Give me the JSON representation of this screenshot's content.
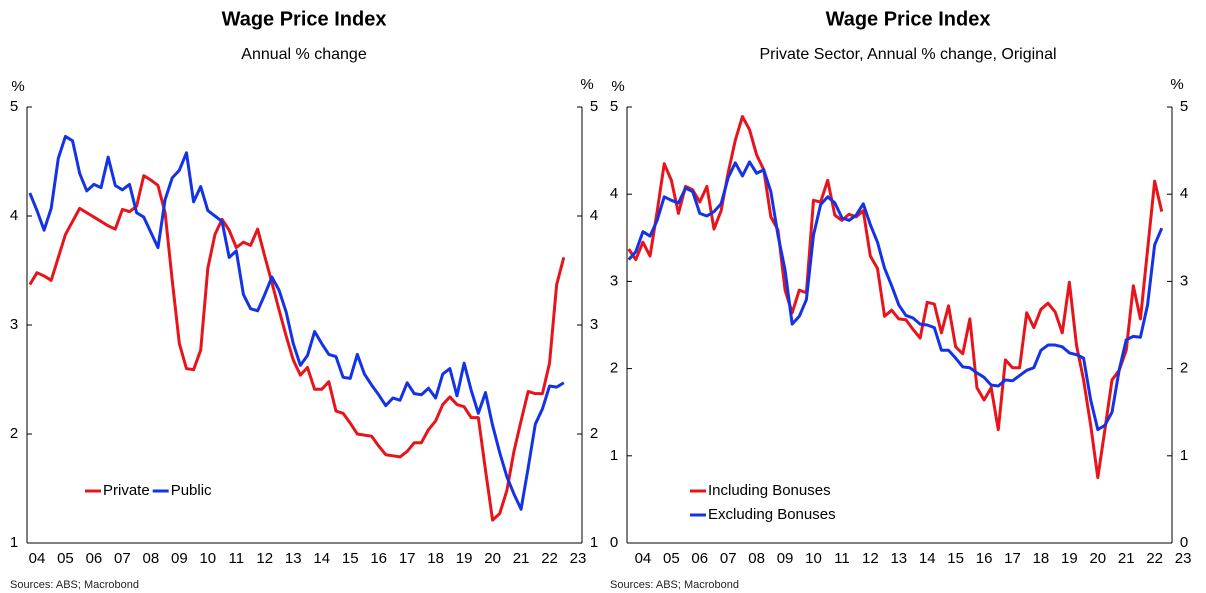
{
  "chart_data": [
    {
      "type": "line",
      "title": "Wage Price Index",
      "subtitle": "Annual % change",
      "y_label": "%",
      "y2_label": "%",
      "source": "Sources: ABS; Macrobond",
      "x": [
        2004.25,
        2004.5,
        2004.75,
        2005,
        2005.25,
        2005.5,
        2005.75,
        2006,
        2006.25,
        2006.5,
        2006.75,
        2007,
        2007.25,
        2007.5,
        2007.75,
        2008,
        2008.25,
        2008.5,
        2008.75,
        2009,
        2009.25,
        2009.5,
        2009.75,
        2010,
        2010.25,
        2010.5,
        2010.75,
        2011,
        2011.25,
        2011.5,
        2011.75,
        2012,
        2012.25,
        2012.5,
        2012.75,
        2013,
        2013.25,
        2013.5,
        2013.75,
        2014,
        2014.25,
        2014.5,
        2014.75,
        2015,
        2015.25,
        2015.5,
        2015.75,
        2016,
        2016.25,
        2016.5,
        2016.75,
        2017,
        2017.25,
        2017.5,
        2017.75,
        2018,
        2018.25,
        2018.5,
        2018.75,
        2019,
        2019.25,
        2019.5,
        2019.75,
        2020,
        2020.25,
        2020.5,
        2020.75,
        2021,
        2021.25,
        2021.5,
        2021.75,
        2022,
        2022.25,
        2022.5,
        2022.75,
        2023
      ],
      "series": [
        {
          "name": "Private",
          "color": "#e8141b",
          "values": [
            3.37,
            3.48,
            3.45,
            3.41,
            3.62,
            3.83,
            3.95,
            4.07,
            4.03,
            3.99,
            3.95,
            3.91,
            3.88,
            4.06,
            4.04,
            4.09,
            4.37,
            4.33,
            4.28,
            4.03,
            3.41,
            2.83,
            2.6,
            2.59,
            2.77,
            3.52,
            3.83,
            3.97,
            3.87,
            3.71,
            3.76,
            3.73,
            3.88,
            3.63,
            3.39,
            3.14,
            2.9,
            2.68,
            2.54,
            2.61,
            2.41,
            2.41,
            2.48,
            2.21,
            2.19,
            2.1,
            2.0,
            1.99,
            1.98,
            1.89,
            1.81,
            1.8,
            1.79,
            1.84,
            1.92,
            1.92,
            2.04,
            2.12,
            2.27,
            2.34,
            2.27,
            2.25,
            2.15,
            2.15,
            1.67,
            1.21,
            1.27,
            1.48,
            1.84,
            2.12,
            2.39,
            2.37,
            2.37,
            2.65,
            3.37,
            3.62
          ]
        },
        {
          "name": "Public",
          "color": "#1432e6",
          "values": [
            4.21,
            4.05,
            3.87,
            4.07,
            4.53,
            4.73,
            4.69,
            4.39,
            4.23,
            4.29,
            4.26,
            4.54,
            4.28,
            4.24,
            4.29,
            4.03,
            3.99,
            3.85,
            3.71,
            4.15,
            4.35,
            4.42,
            4.58,
            4.13,
            4.27,
            4.05,
            4.0,
            3.95,
            3.62,
            3.68,
            3.28,
            3.15,
            3.13,
            3.28,
            3.44,
            3.32,
            3.12,
            2.83,
            2.63,
            2.72,
            2.94,
            2.83,
            2.73,
            2.71,
            2.52,
            2.51,
            2.73,
            2.55,
            2.45,
            2.36,
            2.26,
            2.33,
            2.31,
            2.47,
            2.37,
            2.36,
            2.42,
            2.33,
            2.55,
            2.6,
            2.35,
            2.65,
            2.4,
            2.19,
            2.38,
            2.08,
            1.83,
            1.61,
            1.45,
            1.31,
            1.69,
            2.09,
            2.23,
            2.44,
            2.43,
            2.47
          ]
        }
      ],
      "xlim": [
        2004.15,
        2023.64
      ],
      "xticks": [
        {
          "value": 2004.5,
          "label": "04"
        },
        {
          "value": 2005.5,
          "label": "05"
        },
        {
          "value": 2006.5,
          "label": "06"
        },
        {
          "value": 2007.5,
          "label": "07"
        },
        {
          "value": 2008.5,
          "label": "08"
        },
        {
          "value": 2009.5,
          "label": "09"
        },
        {
          "value": 2010.5,
          "label": "10"
        },
        {
          "value": 2011.5,
          "label": "11"
        },
        {
          "value": 2012.5,
          "label": "12"
        },
        {
          "value": 2013.5,
          "label": "13"
        },
        {
          "value": 2014.5,
          "label": "14"
        },
        {
          "value": 2015.5,
          "label": "15"
        },
        {
          "value": 2016.5,
          "label": "16"
        },
        {
          "value": 2017.5,
          "label": "17"
        },
        {
          "value": 2018.5,
          "label": "18"
        },
        {
          "value": 2019.5,
          "label": "19"
        },
        {
          "value": 2020.5,
          "label": "20"
        },
        {
          "value": 2021.5,
          "label": "21"
        },
        {
          "value": 2022.5,
          "label": "22"
        },
        {
          "value": 2023.5,
          "label": "23"
        }
      ],
      "ylim": [
        1,
        5
      ],
      "yticks": [
        1,
        2,
        3,
        4,
        5
      ],
      "y2lim": [
        1,
        5
      ],
      "y2ticks": [
        1,
        2,
        3,
        4,
        5
      ],
      "grid": false,
      "legend": "lower left"
    },
    {
      "type": "line",
      "title": "Wage Price Index",
      "subtitle": "Private Sector, Annual % change, Original",
      "y_label": "%",
      "y2_label": "%",
      "source": "Sources: ABS; Macrobond",
      "x": [
        2004,
        2004.25,
        2004.5,
        2004.75,
        2005,
        2005.25,
        2005.5,
        2005.75,
        2006,
        2006.25,
        2006.5,
        2006.75,
        2007,
        2007.25,
        2007.5,
        2007.75,
        2008,
        2008.25,
        2008.5,
        2008.75,
        2009,
        2009.25,
        2009.5,
        2009.75,
        2010,
        2010.25,
        2010.5,
        2010.75,
        2011,
        2011.25,
        2011.5,
        2011.75,
        2012,
        2012.25,
        2012.5,
        2012.75,
        2013,
        2013.25,
        2013.5,
        2013.75,
        2014,
        2014.25,
        2014.5,
        2014.75,
        2015,
        2015.25,
        2015.5,
        2015.75,
        2016,
        2016.25,
        2016.5,
        2016.75,
        2017,
        2017.25,
        2017.5,
        2017.75,
        2018,
        2018.25,
        2018.5,
        2018.75,
        2019,
        2019.25,
        2019.5,
        2019.75,
        2020,
        2020.25,
        2020.5,
        2020.75,
        2021,
        2021.25,
        2021.5,
        2021.75,
        2022,
        2022.25,
        2022.5,
        2022.75
      ],
      "series": [
        {
          "name": "Including Bonuses",
          "color": "#e8141b",
          "values": [
            3.37,
            3.25,
            3.45,
            3.29,
            3.8,
            4.35,
            4.16,
            3.78,
            4.09,
            4.05,
            3.91,
            4.09,
            3.6,
            3.81,
            4.25,
            4.62,
            4.89,
            4.74,
            4.45,
            4.28,
            3.74,
            3.59,
            2.9,
            2.64,
            2.9,
            2.87,
            3.93,
            3.91,
            4.16,
            3.76,
            3.7,
            3.77,
            3.74,
            3.81,
            3.29,
            3.15,
            2.6,
            2.67,
            2.57,
            2.56,
            2.45,
            2.35,
            2.76,
            2.74,
            2.41,
            2.72,
            2.25,
            2.17,
            2.57,
            1.78,
            1.64,
            1.78,
            1.3,
            2.1,
            2.01,
            2.01,
            2.64,
            2.47,
            2.68,
            2.75,
            2.65,
            2.41,
            2.99,
            2.27,
            1.87,
            1.35,
            0.75,
            1.3,
            1.87,
            1.98,
            2.21,
            2.95,
            2.57,
            3.36,
            4.15,
            3.8
          ]
        },
        {
          "name": "Excluding Bonuses",
          "color": "#1432e6",
          "values": [
            3.25,
            3.34,
            3.57,
            3.52,
            3.7,
            3.97,
            3.93,
            3.9,
            4.07,
            4.03,
            3.78,
            3.75,
            3.8,
            3.89,
            4.19,
            4.36,
            4.21,
            4.37,
            4.24,
            4.28,
            4.03,
            3.53,
            3.13,
            2.51,
            2.6,
            2.79,
            3.53,
            3.88,
            3.97,
            3.9,
            3.73,
            3.7,
            3.76,
            3.89,
            3.65,
            3.45,
            3.15,
            2.95,
            2.73,
            2.61,
            2.58,
            2.51,
            2.5,
            2.47,
            2.21,
            2.21,
            2.12,
            2.02,
            2.01,
            1.95,
            1.9,
            1.81,
            1.8,
            1.87,
            1.86,
            1.92,
            1.98,
            2.01,
            2.21,
            2.27,
            2.27,
            2.25,
            2.18,
            2.16,
            2.12,
            1.64,
            1.3,
            1.35,
            1.5,
            1.98,
            2.33,
            2.37,
            2.36,
            2.73,
            3.42,
            3.61
          ]
        }
      ],
      "xlim": [
        2003.94,
        2023.11
      ],
      "xticks": [
        {
          "value": 2004.5,
          "label": "04"
        },
        {
          "value": 2005.5,
          "label": "05"
        },
        {
          "value": 2006.5,
          "label": "06"
        },
        {
          "value": 2007.5,
          "label": "07"
        },
        {
          "value": 2008.5,
          "label": "08"
        },
        {
          "value": 2009.5,
          "label": "09"
        },
        {
          "value": 2010.5,
          "label": "10"
        },
        {
          "value": 2011.5,
          "label": "11"
        },
        {
          "value": 2012.5,
          "label": "12"
        },
        {
          "value": 2013.5,
          "label": "13"
        },
        {
          "value": 2014.5,
          "label": "14"
        },
        {
          "value": 2015.5,
          "label": "15"
        },
        {
          "value": 2016.5,
          "label": "16"
        },
        {
          "value": 2017.5,
          "label": "17"
        },
        {
          "value": 2018.5,
          "label": "18"
        },
        {
          "value": 2019.5,
          "label": "19"
        },
        {
          "value": 2020.5,
          "label": "20"
        },
        {
          "value": 2021.5,
          "label": "21"
        },
        {
          "value": 2022.5,
          "label": "22"
        },
        {
          "value": 2023.5,
          "label": "23"
        }
      ],
      "ylim": [
        0,
        5
      ],
      "yticks": [
        0,
        1,
        2,
        3,
        4,
        5
      ],
      "y2lim": [
        0,
        5
      ],
      "y2ticks": [
        0,
        1,
        2,
        3,
        4,
        5
      ],
      "grid": false,
      "legend": "lower left"
    }
  ]
}
